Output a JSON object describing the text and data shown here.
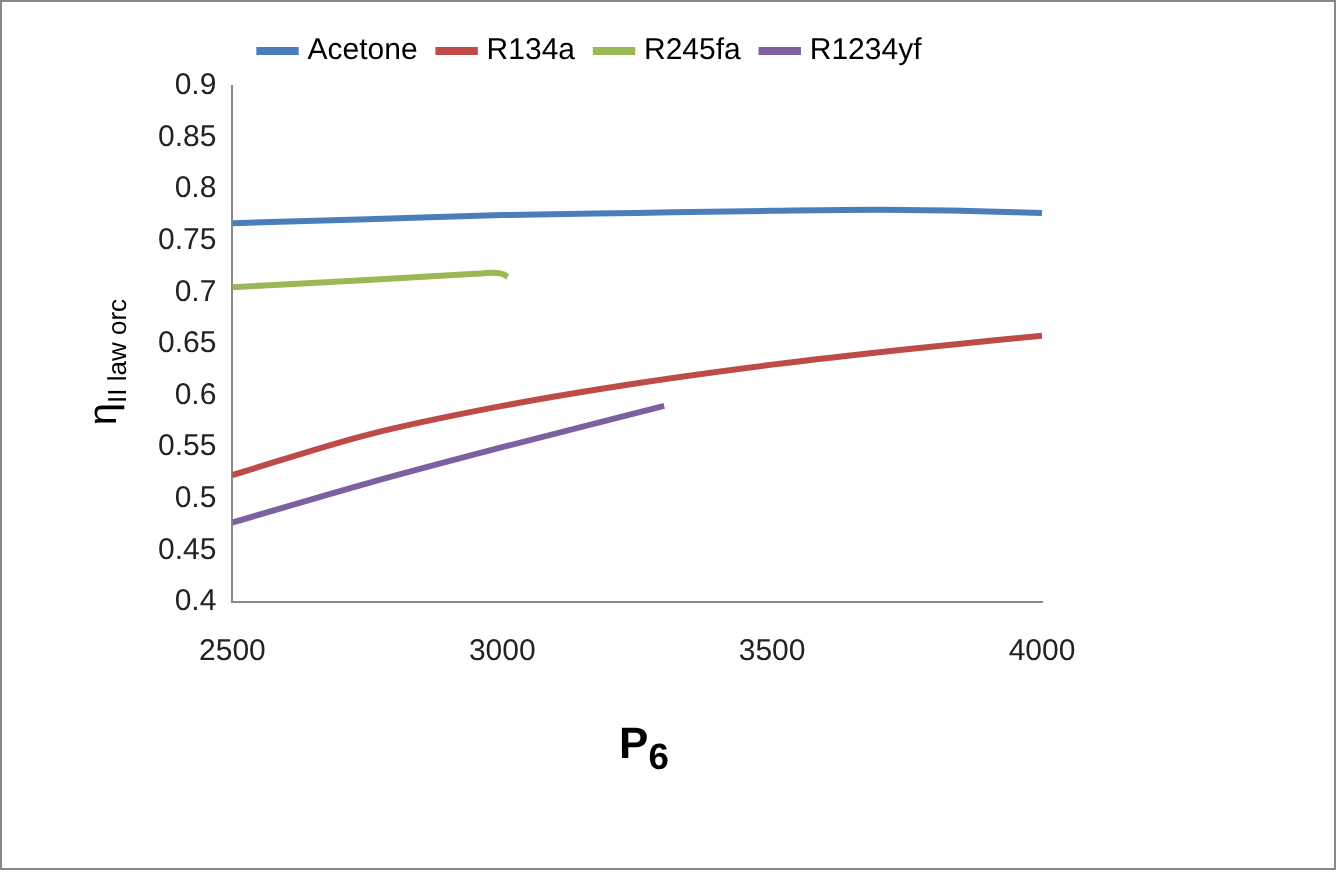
{
  "chart_data": {
    "type": "line",
    "xlabel": "P$_{6}$",
    "ylabel": "η$_{II law orc}$",
    "xlim": [
      2500,
      4000
    ],
    "xticks": [
      2500,
      3000,
      3500,
      4000
    ],
    "ylim": [
      0.4,
      0.9
    ],
    "yticks": [
      0.4,
      0.45,
      0.5,
      0.55,
      0.6,
      0.65,
      0.7,
      0.75,
      0.8,
      0.85,
      0.9
    ],
    "grid": false,
    "legend": "top",
    "marker": "none",
    "line_style": "solid",
    "series": [
      {
        "name": "Acetone",
        "color": "#4a7ebb",
        "x": [
          2500,
          2750,
          3000,
          3250,
          3500,
          3700,
          3850,
          4000
        ],
        "values": [
          0.767,
          0.771,
          0.775,
          0.777,
          0.779,
          0.78,
          0.779,
          0.777
        ]
      },
      {
        "name": "R134a",
        "color": "#be4b48",
        "x": [
          2500,
          2750,
          3000,
          3250,
          3500,
          3750,
          4000
        ],
        "values": [
          0.523,
          0.562,
          0.59,
          0.612,
          0.63,
          0.645,
          0.658
        ]
      },
      {
        "name": "R245fa",
        "color": "#98b954",
        "x": [
          2500,
          2750,
          2950,
          2980,
          3000,
          3010
        ],
        "values": [
          0.705,
          0.712,
          0.718,
          0.719,
          0.718,
          0.715
        ]
      },
      {
        "name": "R1234yf",
        "color": "#7d60a0",
        "x": [
          2500,
          2750,
          3000,
          3300
        ],
        "values": [
          0.477,
          0.515,
          0.55,
          0.59
        ]
      }
    ]
  }
}
